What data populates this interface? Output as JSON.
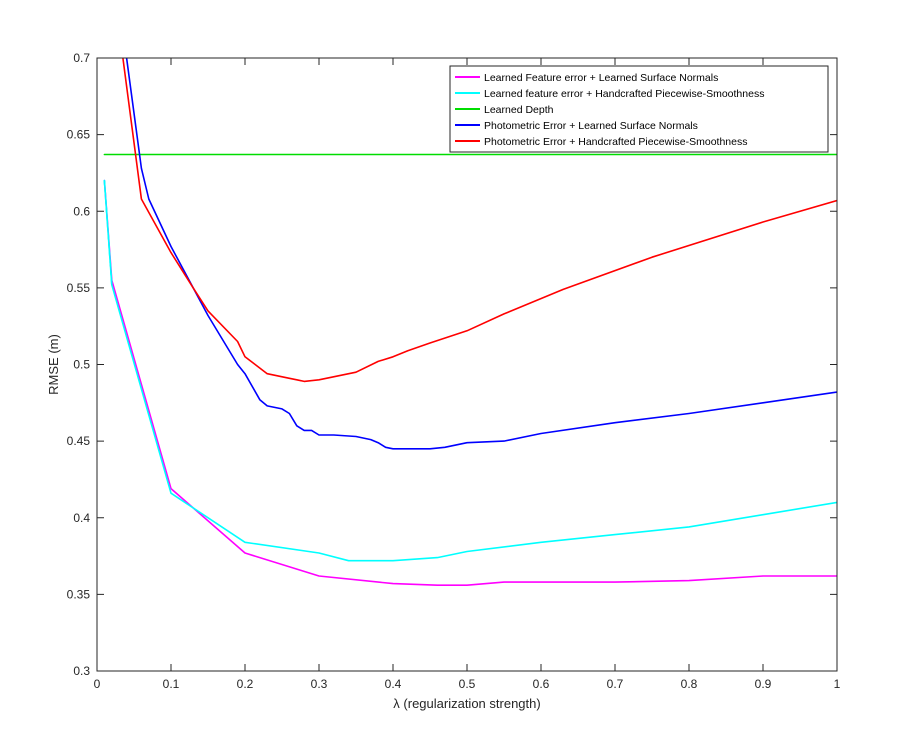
{
  "chart_data": {
    "type": "line",
    "title": "",
    "xlabel": "λ (regularization strength)",
    "ylabel": "RMSE (m)",
    "xlim": [
      0,
      1
    ],
    "ylim": [
      0.3,
      0.7
    ],
    "xticks": [
      0,
      0.1,
      0.2,
      0.3,
      0.4,
      0.5,
      0.6,
      0.7,
      0.8,
      0.9,
      1
    ],
    "xtick_labels": [
      "0",
      "0.1",
      "0.2",
      "0.3",
      "0.4",
      "0.5",
      "0.6",
      "0.7",
      "0.8",
      "0.9",
      "1"
    ],
    "yticks": [
      0.3,
      0.35,
      0.4,
      0.45,
      0.5,
      0.55,
      0.6,
      0.65,
      0.7
    ],
    "ytick_labels": [
      "0.3",
      "0.35",
      "0.4",
      "0.45",
      "0.5",
      "0.55",
      "0.6",
      "0.65",
      "0.7"
    ],
    "grid": false,
    "legend_position": "top-right",
    "series": [
      {
        "name": "Learned Feature error + Learned Surface Normals",
        "color": "#ff00ff",
        "x": [
          0.01,
          0.02,
          0.1,
          0.2,
          0.3,
          0.4,
          0.46,
          0.5,
          0.55,
          0.6,
          0.7,
          0.8,
          0.9,
          1.0
        ],
        "y": [
          0.62,
          0.555,
          0.419,
          0.377,
          0.362,
          0.357,
          0.356,
          0.356,
          0.358,
          0.358,
          0.358,
          0.359,
          0.362,
          0.362
        ]
      },
      {
        "name": "Learned feature error + Handcrafted Piecewise-Smoothness",
        "color": "#00ffff",
        "x": [
          0.01,
          0.02,
          0.1,
          0.2,
          0.3,
          0.34,
          0.4,
          0.46,
          0.5,
          0.6,
          0.7,
          0.8,
          0.9,
          1.0
        ],
        "y": [
          0.62,
          0.552,
          0.416,
          0.384,
          0.377,
          0.372,
          0.372,
          0.374,
          0.378,
          0.384,
          0.389,
          0.394,
          0.402,
          0.41
        ],
        "dashed_start": true
      },
      {
        "name": "Learned Depth",
        "color": "#00dd00",
        "x": [
          0.01,
          1.0
        ],
        "y": [
          0.637,
          0.637
        ]
      },
      {
        "name": "Photometric Error + Learned Surface Normals",
        "color": "#0000ff",
        "x": [
          0.04,
          0.06,
          0.07,
          0.1,
          0.13,
          0.15,
          0.19,
          0.2,
          0.22,
          0.23,
          0.25,
          0.26,
          0.27,
          0.28,
          0.29,
          0.3,
          0.32,
          0.35,
          0.37,
          0.38,
          0.39,
          0.4,
          0.42,
          0.45,
          0.47,
          0.5,
          0.55,
          0.6,
          0.7,
          0.8,
          0.9,
          1.0
        ],
        "y": [
          0.7,
          0.628,
          0.608,
          0.577,
          0.55,
          0.532,
          0.5,
          0.494,
          0.477,
          0.473,
          0.471,
          0.468,
          0.46,
          0.457,
          0.457,
          0.454,
          0.454,
          0.453,
          0.451,
          0.449,
          0.446,
          0.445,
          0.445,
          0.445,
          0.446,
          0.449,
          0.45,
          0.455,
          0.462,
          0.468,
          0.475,
          0.482
        ]
      },
      {
        "name": "Photometric Error + Handcrafted Piecewise-Smoothness",
        "color": "#ff0000",
        "x": [
          0.035,
          0.06,
          0.1,
          0.13,
          0.15,
          0.19,
          0.2,
          0.23,
          0.26,
          0.27,
          0.28,
          0.3,
          0.35,
          0.38,
          0.4,
          0.42,
          0.45,
          0.5,
          0.55,
          0.63,
          0.75,
          0.9,
          1.0
        ],
        "y": [
          0.7,
          0.608,
          0.573,
          0.55,
          0.535,
          0.515,
          0.505,
          0.494,
          0.491,
          0.49,
          0.489,
          0.49,
          0.495,
          0.502,
          0.505,
          0.509,
          0.514,
          0.522,
          0.533,
          0.549,
          0.57,
          0.593,
          0.607
        ]
      }
    ]
  }
}
